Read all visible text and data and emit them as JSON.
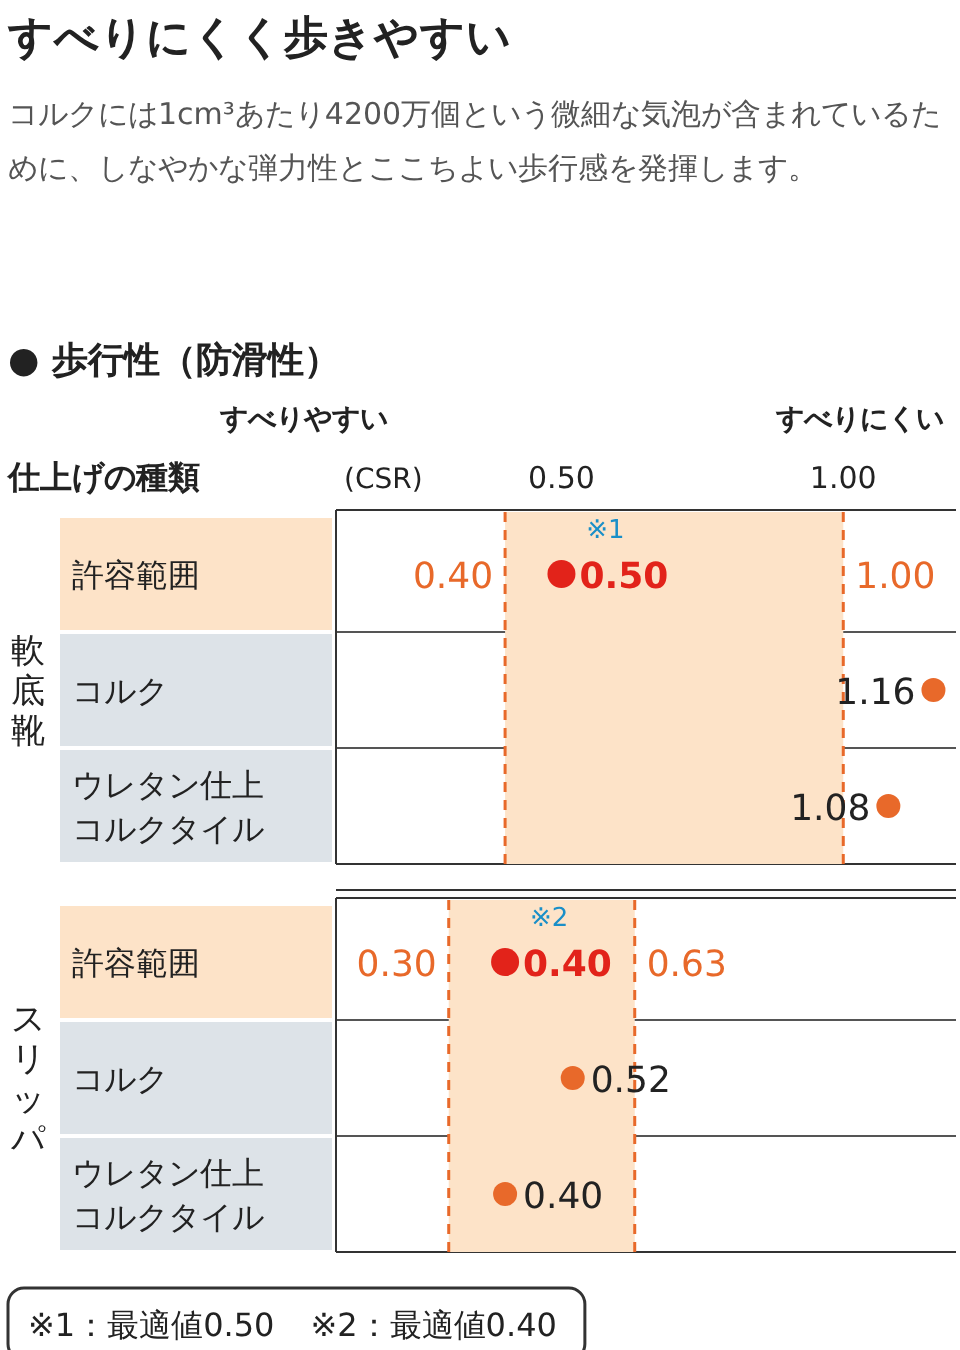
{
  "chart_data": [
    {
      "type": "scatter",
      "orientation": "horizontal",
      "title": "すべりにくく歩きやすい",
      "subtitle": "コルクには1cm³あたり4200万個という微細な気泡が含まれているために、しなやかな弾力性とここちよい歩行感を発揮します。",
      "xlabel": "(CSR)",
      "ylabel": "軟底靴",
      "annotations": [
        "● 歩行性（防滑性）",
        "すべりやすい",
        "すべりにくい",
        "仕上げの種類",
        {
          "text": "※1",
          "x": 0.5,
          "y": "許容範囲"
        }
      ],
      "categories": [
        "許容範囲",
        "コルク",
        "ウレタン仕上コルクタイル"
      ],
      "values": [
        0.5,
        1.16,
        1.08
      ],
      "colors": [
        "#e2231a",
        "#e8692a",
        "#e8692a"
      ],
      "value_labels": [
        "0.50",
        "1.16",
        "1.08"
      ],
      "xlim": [
        0.1,
        1.2
      ],
      "xticks": [
        {
          "value": 0.5,
          "label": "0.50"
        },
        {
          "value": 1.0,
          "label": "1.00"
        }
      ],
      "bands": [
        {
          "axis": "x",
          "from": 0.4,
          "to": 1.0,
          "color": "#fde3c8"
        }
      ],
      "ref_lines": [
        {
          "axis": "x",
          "value": 0.4,
          "label": "0.40",
          "color": "#e8692a",
          "line_style": "dashed"
        },
        {
          "axis": "x",
          "value": 1.0,
          "label": "1.00",
          "color": "#e8692a",
          "line_style": "dashed"
        }
      ]
    },
    {
      "type": "scatter",
      "orientation": "horizontal",
      "ylabel": "スリッパ",
      "annotations": [
        {
          "text": "※2",
          "x": 0.4,
          "y": "許容範囲"
        },
        "※1：最適値0.50",
        "※2：最適値0.40"
      ],
      "categories": [
        "許容範囲",
        "コルク",
        "ウレタン仕上コルクタイル"
      ],
      "values": [
        0.4,
        0.52,
        0.4
      ],
      "colors": [
        "#e2231a",
        "#e8692a",
        "#e8692a"
      ],
      "value_labels": [
        "0.40",
        "0.52",
        "0.40"
      ],
      "xlim": [
        0.1,
        1.2
      ],
      "bands": [
        {
          "axis": "x",
          "from": 0.3,
          "to": 0.63,
          "color": "#fde3c8"
        }
      ],
      "ref_lines": [
        {
          "axis": "x",
          "value": 0.3,
          "label": "0.30",
          "color": "#e8692a",
          "line_style": "dashed"
        },
        {
          "axis": "x",
          "value": 0.63,
          "label": "0.63",
          "color": "#e8692a",
          "line_style": "dashed"
        }
      ]
    }
  ]
}
